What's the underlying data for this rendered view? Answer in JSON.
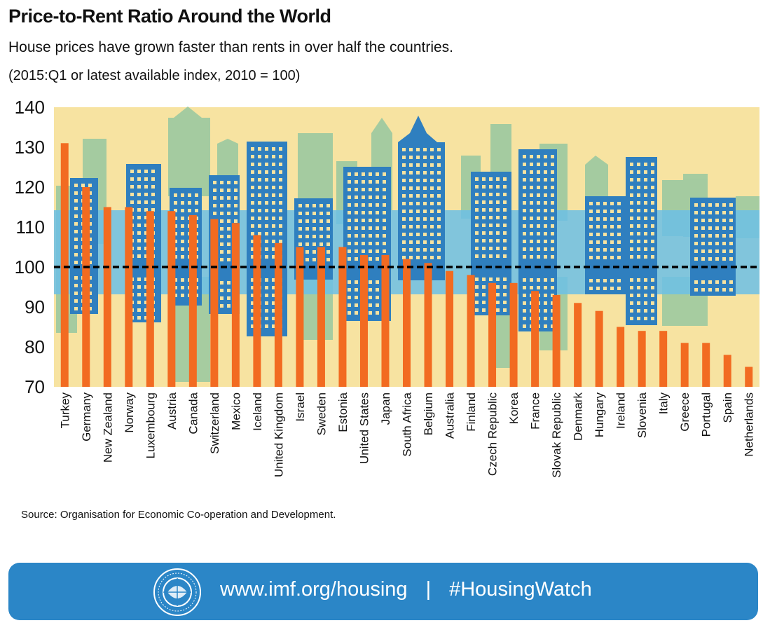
{
  "title": "Price-to-Rent Ratio Around the World",
  "subtitle": "House prices have grown faster than rents in over half the countries.",
  "note": "(2015:Q1 or latest available index, 2010 = 100)",
  "source": "Source: Organisation for Economic Co-operation and Development.",
  "footer": {
    "url": "www.imf.org/housing",
    "separator": "|",
    "hashtag": "#HousingWatch",
    "seal_text": "INTERNATIONAL MONETARY FUND"
  },
  "colors": {
    "bar": "#f26b21",
    "background": "#f7e3a1",
    "skyline_green": "#9cc9a0",
    "skyline_blue": "#2f7fbf",
    "water": "#6cc0e6",
    "footer": "#2b86c7"
  },
  "chart_data": {
    "type": "bar",
    "categories": [
      "Turkey",
      "Germany",
      "New Zealand",
      "Norway",
      "Luxembourg",
      "Austria",
      "Canada",
      "Switzerland",
      "Mexico",
      "Iceland",
      "United Kingdom",
      "Israel",
      "Sweden",
      "Estonia",
      "United States",
      "Japan",
      "South Africa",
      "Belgium",
      "Australia",
      "Finland",
      "Czech Republic",
      "Korea",
      "France",
      "Slovak Republic",
      "Denmark",
      "Hungary",
      "Ireland",
      "Slovenia",
      "Italy",
      "Greece",
      "Portugal",
      "Spain",
      "Netherlands"
    ],
    "values": [
      131,
      120,
      115,
      115,
      114,
      114,
      113,
      112,
      111,
      108,
      106,
      105,
      105,
      105,
      103,
      103,
      102,
      101,
      99,
      98,
      96,
      96,
      94,
      93,
      91,
      89,
      85,
      84,
      84,
      81,
      81,
      78,
      75
    ],
    "ylim": [
      70,
      140
    ],
    "yticks": [
      70,
      80,
      90,
      100,
      110,
      120,
      130,
      140
    ],
    "reference_line": 100,
    "grid": false,
    "legend": "none"
  }
}
